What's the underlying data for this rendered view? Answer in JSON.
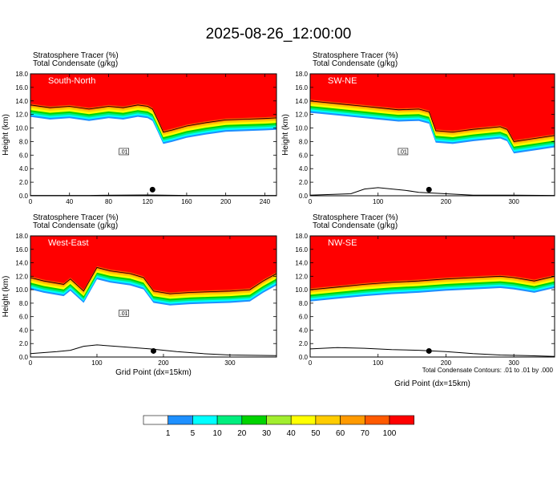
{
  "figure": {
    "title": "2025-08-26_12:00:00",
    "contour_note": "Total Condensate Contours: .01 to .01 by .000"
  },
  "chart_data": [
    {
      "type": "heatmap",
      "name": "South-North",
      "left_label": "Stratosphere Tracer   (%)",
      "left_label2": "Total Condensate   (g/kg)",
      "ylabel": "Height (km)",
      "xlabel": "",
      "xlim": [
        0,
        252
      ],
      "xticks": [
        0,
        40,
        80,
        120,
        160,
        200,
        240
      ],
      "ylim": [
        0,
        18
      ],
      "yticks": [
        0,
        2,
        4,
        6,
        8,
        10,
        12,
        14,
        16,
        18
      ],
      "ytick_labels": [
        "0.0",
        "2.0",
        "4.0",
        "6.0",
        "8.0",
        "10.0",
        "12.0",
        "14.0",
        "16.0",
        "18.0"
      ],
      "tropopause_km": [
        [
          0,
          13.6
        ],
        [
          20,
          13.2
        ],
        [
          40,
          13.4
        ],
        [
          60,
          13.0
        ],
        [
          80,
          13.4
        ],
        [
          95,
          13.2
        ],
        [
          110,
          13.6
        ],
        [
          120,
          13.4
        ],
        [
          125,
          13.0
        ],
        [
          130,
          11.5
        ],
        [
          136,
          9.6
        ],
        [
          145,
          9.9
        ],
        [
          160,
          10.5
        ],
        [
          180,
          11.0
        ],
        [
          200,
          11.4
        ],
        [
          220,
          11.5
        ],
        [
          240,
          11.6
        ],
        [
          252,
          11.7
        ]
      ],
      "contour_label": ".01",
      "terrain_km": [
        [
          0,
          0.05
        ],
        [
          60,
          0.05
        ],
        [
          90,
          0.1
        ],
        [
          120,
          0.12
        ],
        [
          160,
          0.05
        ],
        [
          252,
          0.05
        ]
      ],
      "marker_x": 125
    },
    {
      "type": "heatmap",
      "name": "SW-NE",
      "left_label": "Stratosphere Tracer   (%)",
      "left_label2": "Total Condensate   (g/kg)",
      "ylabel": "Height (km)",
      "xlabel": "",
      "xlim": [
        0,
        360
      ],
      "xticks": [
        0,
        100,
        200,
        300
      ],
      "ylim": [
        0,
        18
      ],
      "yticks": [
        0,
        2,
        4,
        6,
        8,
        10,
        12,
        14,
        16,
        18
      ],
      "ytick_labels": [
        "0.0",
        "2.0",
        "4.0",
        "6.0",
        "8.0",
        "10.0",
        "12.0",
        "14.0",
        "16.0",
        "18.0"
      ],
      "tropopause_km": [
        [
          0,
          14.2
        ],
        [
          40,
          13.8
        ],
        [
          80,
          13.4
        ],
        [
          100,
          13.2
        ],
        [
          130,
          12.9
        ],
        [
          160,
          13.0
        ],
        [
          175,
          12.6
        ],
        [
          185,
          9.8
        ],
        [
          210,
          9.6
        ],
        [
          240,
          10.0
        ],
        [
          260,
          10.2
        ],
        [
          280,
          10.4
        ],
        [
          290,
          10.0
        ],
        [
          300,
          8.2
        ],
        [
          320,
          8.5
        ],
        [
          340,
          8.8
        ],
        [
          360,
          9.1
        ]
      ],
      "contour_label": ".01",
      "terrain_km": [
        [
          0,
          0.1
        ],
        [
          60,
          0.3
        ],
        [
          80,
          1.0
        ],
        [
          100,
          1.2
        ],
        [
          140,
          0.8
        ],
        [
          160,
          0.5
        ],
        [
          200,
          0.3
        ],
        [
          240,
          0.1
        ],
        [
          300,
          0.1
        ],
        [
          360,
          0.05
        ]
      ],
      "marker_x": 175
    },
    {
      "type": "heatmap",
      "name": "West-East",
      "left_label": "Stratosphere Tracer   (%)",
      "left_label2": "Total Condensate   (g/kg)",
      "ylabel": "Height (km)",
      "xlabel": "Grid Point (dx=15km)",
      "xlim": [
        0,
        370
      ],
      "xticks": [
        0,
        100,
        200,
        300
      ],
      "ylim": [
        0,
        18
      ],
      "yticks": [
        0,
        2,
        4,
        6,
        8,
        10,
        12,
        14,
        16,
        18
      ],
      "ytick_labels": [
        "0.0",
        "2.0",
        "4.0",
        "6.0",
        "8.0",
        "10.0",
        "12.0",
        "14.0",
        "16.0",
        "18.0"
      ],
      "tropopause_km": [
        [
          0,
          12.0
        ],
        [
          20,
          11.5
        ],
        [
          50,
          11.0
        ],
        [
          60,
          11.8
        ],
        [
          80,
          10.0
        ],
        [
          100,
          13.5
        ],
        [
          120,
          13.0
        ],
        [
          150,
          12.6
        ],
        [
          170,
          12.0
        ],
        [
          185,
          10.0
        ],
        [
          210,
          9.6
        ],
        [
          240,
          9.8
        ],
        [
          270,
          9.9
        ],
        [
          300,
          10.0
        ],
        [
          330,
          10.2
        ],
        [
          350,
          11.5
        ],
        [
          370,
          12.6
        ]
      ],
      "contour_label": ".01",
      "terrain_km": [
        [
          0,
          0.5
        ],
        [
          40,
          0.8
        ],
        [
          60,
          1.0
        ],
        [
          80,
          1.6
        ],
        [
          100,
          1.8
        ],
        [
          140,
          1.5
        ],
        [
          180,
          1.2
        ],
        [
          220,
          0.8
        ],
        [
          260,
          0.5
        ],
        [
          300,
          0.3
        ],
        [
          370,
          0.2
        ]
      ],
      "marker_x": 185
    },
    {
      "type": "heatmap",
      "name": "NW-SE",
      "left_label": "Stratosphere Tracer   (%)",
      "left_label2": "Total Condensate   (g/kg)",
      "ylabel": "",
      "xlabel": "Grid Point (dx=15km)",
      "xlim": [
        0,
        360
      ],
      "xticks": [
        0,
        100,
        200,
        300
      ],
      "ylim": [
        0,
        18
      ],
      "yticks": [
        0,
        2,
        4,
        6,
        8,
        10,
        12,
        14,
        16,
        18
      ],
      "ytick_labels": [
        "0.0",
        "2.0",
        "4.0",
        "6.0",
        "8.0",
        "10.0",
        "12.0",
        "14.0",
        "16.0",
        "18.0"
      ],
      "tropopause_km": [
        [
          0,
          10.2
        ],
        [
          40,
          10.6
        ],
        [
          80,
          11.0
        ],
        [
          120,
          11.3
        ],
        [
          160,
          11.5
        ],
        [
          200,
          11.8
        ],
        [
          240,
          12.0
        ],
        [
          280,
          12.2
        ],
        [
          300,
          12.0
        ],
        [
          330,
          11.5
        ],
        [
          360,
          12.2
        ]
      ],
      "contour_label": "",
      "terrain_km": [
        [
          0,
          1.2
        ],
        [
          40,
          1.4
        ],
        [
          80,
          1.3
        ],
        [
          120,
          1.1
        ],
        [
          160,
          1.0
        ],
        [
          200,
          0.8
        ],
        [
          240,
          0.5
        ],
        [
          280,
          0.3
        ],
        [
          320,
          0.2
        ],
        [
          360,
          0.1
        ]
      ],
      "marker_x": 175
    }
  ],
  "colorbar": {
    "label": "Stratosphere Tracer (%)",
    "levels": [
      "1",
      "5",
      "10",
      "20",
      "30",
      "40",
      "50",
      "60",
      "70",
      "100"
    ],
    "colors": [
      "#ffffff",
      "#1e90ff",
      "#00ffff",
      "#00ee7e",
      "#00d400",
      "#a2ee2f",
      "#ffff00",
      "#ffcc00",
      "#ff9a00",
      "#ff5a00",
      "#ff0000"
    ]
  }
}
